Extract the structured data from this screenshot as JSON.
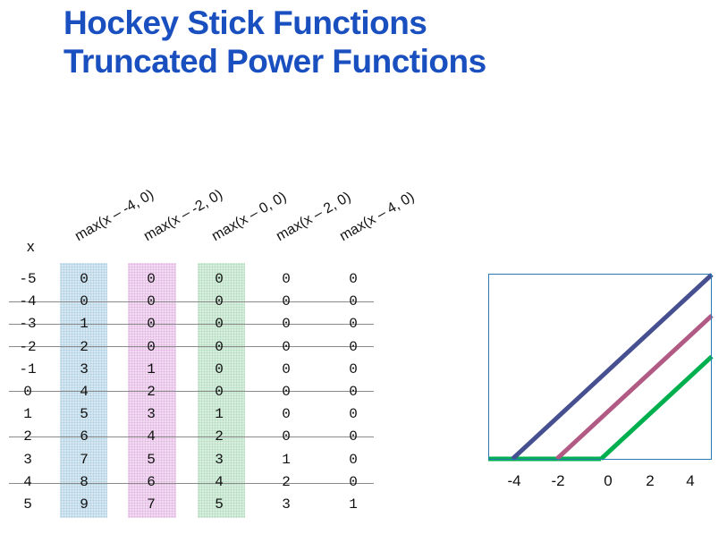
{
  "title": {
    "line1": "Hockey Stick Functions",
    "line2": "Truncated Power Functions"
  },
  "table": {
    "x_header": "x",
    "column_headers": [
      "max(x – -4, 0)",
      "max(x – -2, 0)",
      "max(x – 0, 0)",
      "max(x – 2, 0)",
      "max(x – 4, 0)"
    ],
    "rows": [
      {
        "x": "-5",
        "values": [
          "0",
          "0",
          "0",
          "0",
          "0"
        ]
      },
      {
        "x": "-4",
        "values": [
          "0",
          "0",
          "0",
          "0",
          "0"
        ]
      },
      {
        "x": "-3",
        "values": [
          "1",
          "0",
          "0",
          "0",
          "0"
        ]
      },
      {
        "x": "-2",
        "values": [
          "2",
          "0",
          "0",
          "0",
          "0"
        ]
      },
      {
        "x": "-1",
        "values": [
          "3",
          "1",
          "0",
          "0",
          "0"
        ]
      },
      {
        "x": "0",
        "values": [
          "4",
          "2",
          "0",
          "0",
          "0"
        ]
      },
      {
        "x": "1",
        "values": [
          "5",
          "3",
          "1",
          "0",
          "0"
        ]
      },
      {
        "x": "2",
        "values": [
          "6",
          "4",
          "2",
          "0",
          "0"
        ]
      },
      {
        "x": "3",
        "values": [
          "7",
          "5",
          "3",
          "1",
          "0"
        ]
      },
      {
        "x": "4",
        "values": [
          "8",
          "6",
          "4",
          "2",
          "0"
        ]
      },
      {
        "x": "5",
        "values": [
          "9",
          "7",
          "5",
          "3",
          "1"
        ]
      }
    ],
    "highlight_colors": [
      "#d7e8f2",
      "#f2dcf2",
      "#d9eedf"
    ]
  },
  "plot": {
    "x_tick_labels": [
      "-4",
      "-2",
      "0",
      "2",
      "4"
    ],
    "xlim": [
      -5.1,
      5
    ],
    "ylim": [
      0,
      9
    ],
    "frame_color": "#2a7ab8",
    "series": [
      {
        "knot": -4,
        "color": "#464f8f"
      },
      {
        "knot": -2,
        "color": "#b15a84"
      },
      {
        "knot": 0,
        "color": "#00b04f"
      }
    ]
  }
}
